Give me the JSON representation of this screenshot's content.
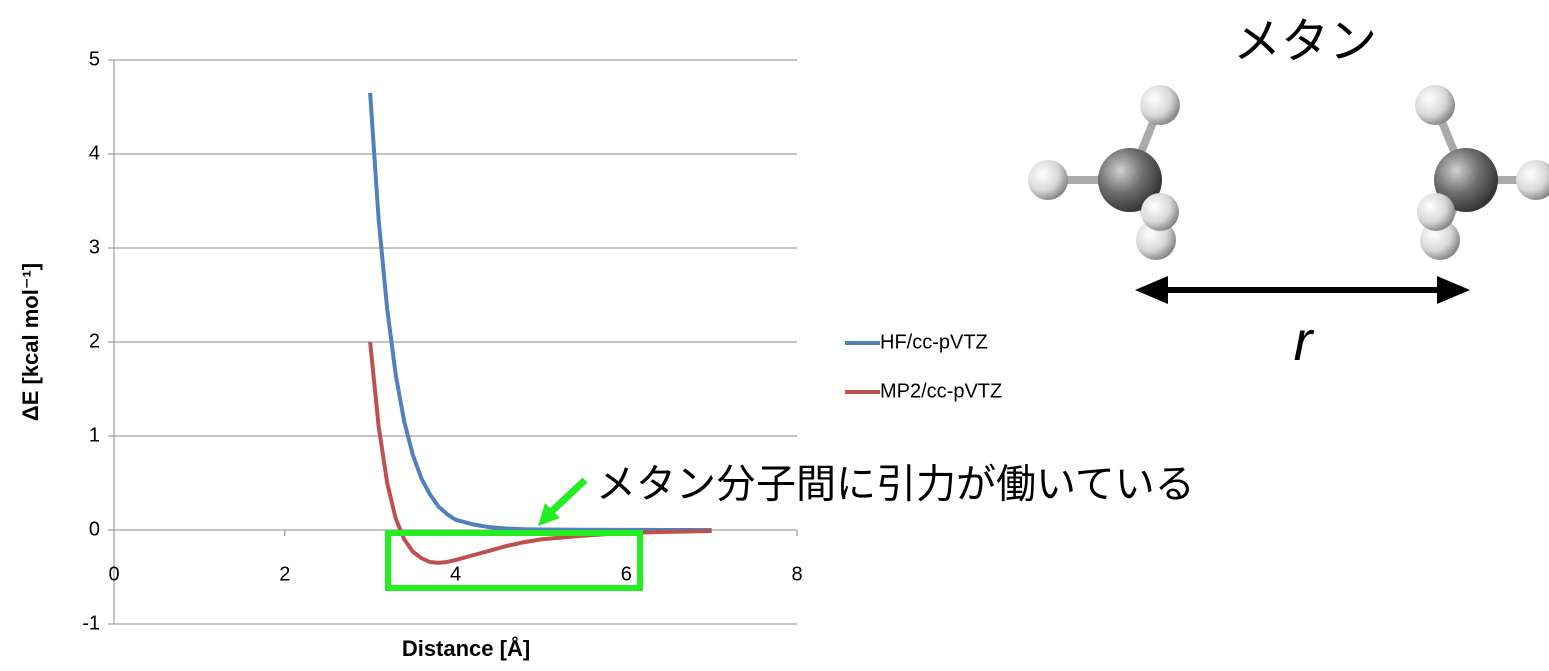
{
  "chart_data": {
    "type": "line",
    "x_label": "Distance [Å]",
    "y_label": "ΔE [kcal mol⁻¹]",
    "x": [
      3.0,
      3.1,
      3.2,
      3.3,
      3.4,
      3.5,
      3.6,
      3.7,
      3.8,
      3.9,
      4.0,
      4.2,
      4.4,
      4.6,
      4.8,
      5.0,
      5.5,
      6.0,
      6.5,
      7.0
    ],
    "series": [
      {
        "name": "HF/cc-pVTZ",
        "color": "#4f81bd",
        "values": [
          4.65,
          3.3,
          2.35,
          1.65,
          1.15,
          0.8,
          0.55,
          0.38,
          0.25,
          0.17,
          0.11,
          0.06,
          0.03,
          0.015,
          0.008,
          0.005,
          0.002,
          0.001,
          0,
          0
        ]
      },
      {
        "name": "MP2/cc-pVTZ",
        "color": "#c0504d",
        "values": [
          2.0,
          1.1,
          0.5,
          0.12,
          -0.1,
          -0.23,
          -0.3,
          -0.34,
          -0.35,
          -0.34,
          -0.32,
          -0.27,
          -0.22,
          -0.17,
          -0.13,
          -0.1,
          -0.06,
          -0.03,
          -0.02,
          -0.01
        ]
      }
    ],
    "xlim": [
      0,
      8
    ],
    "xticks": [
      0,
      2,
      4,
      6,
      8
    ],
    "ylim": [
      -1,
      5
    ],
    "yticks": [
      -1,
      0,
      1,
      2,
      3,
      4,
      5
    ],
    "grid": true,
    "legend": "right",
    "annotation": "メタン分子間に引力が働いている"
  },
  "diagram": {
    "title": "メタン",
    "distance_label": "r"
  }
}
